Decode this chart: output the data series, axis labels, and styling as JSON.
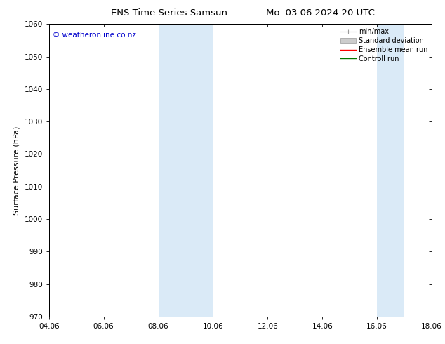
{
  "title_left": "ENS Time Series Samsun",
  "title_right": "Mo. 03.06.2024 20 UTC",
  "ylabel": "Surface Pressure (hPa)",
  "ylim": [
    970,
    1060
  ],
  "yticks": [
    970,
    980,
    990,
    1000,
    1010,
    1020,
    1030,
    1040,
    1050,
    1060
  ],
  "xticks": [
    "04.06",
    "06.06",
    "08.06",
    "10.06",
    "12.06",
    "14.06",
    "16.06",
    "18.06"
  ],
  "xtick_positions": [
    0,
    2,
    4,
    6,
    8,
    10,
    12,
    14
  ],
  "xlim": [
    0,
    14
  ],
  "shaded_bands": [
    {
      "x_start": 4.0,
      "x_end": 6.0
    },
    {
      "x_start": 12.0,
      "x_end": 13.0
    }
  ],
  "shade_color": "#daeaf7",
  "watermark": "© weatheronline.co.nz",
  "watermark_color": "#0000cc",
  "legend_entries": [
    {
      "label": "min/max",
      "color": "#999999",
      "type": "line"
    },
    {
      "label": "Standard deviation",
      "color": "#cccccc",
      "type": "patch"
    },
    {
      "label": "Ensemble mean run",
      "color": "#ff0000",
      "type": "line"
    },
    {
      "label": "Controll run",
      "color": "#007700",
      "type": "line"
    }
  ],
  "bg_color": "#ffffff",
  "title_fontsize": 9.5,
  "axis_fontsize": 8,
  "tick_fontsize": 7.5,
  "legend_fontsize": 7,
  "watermark_fontsize": 7.5
}
